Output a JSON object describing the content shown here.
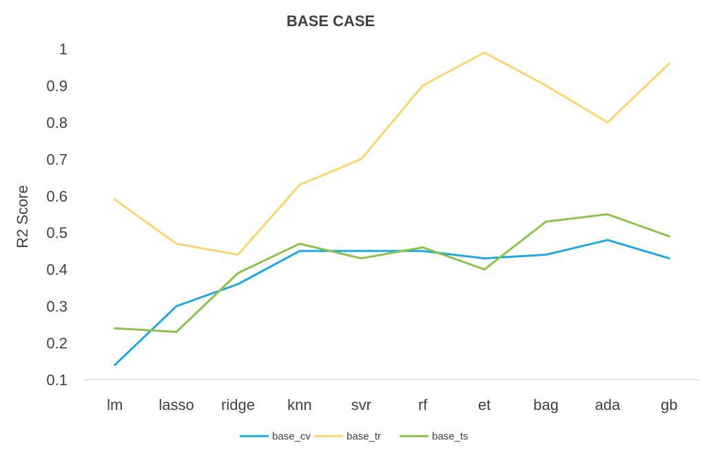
{
  "chart_data": {
    "type": "line",
    "title": "BASE CASE",
    "xlabel": "",
    "ylabel": "R2 Score",
    "categories": [
      "lm",
      "lasso",
      "ridge",
      "knn",
      "svr",
      "rf",
      "et",
      "bag",
      "ada",
      "gb"
    ],
    "yticks": [
      "0.1",
      "0.2",
      "0.3",
      "0.4",
      "0.5",
      "0.6",
      "0.7",
      "0.8",
      "0.9",
      "1"
    ],
    "ylim": [
      0.1,
      1.0
    ],
    "grid": false,
    "legend_position": "bottom",
    "series": [
      {
        "name": "base_cv",
        "color": "#1fa7e1",
        "values": [
          0.14,
          0.3,
          0.36,
          0.45,
          0.45,
          0.45,
          0.43,
          0.44,
          0.48,
          0.43
        ]
      },
      {
        "name": "base_tr",
        "color": "#fbd46d",
        "values": [
          0.59,
          0.47,
          0.44,
          0.63,
          0.7,
          0.9,
          0.99,
          0.9,
          0.8,
          0.96
        ]
      },
      {
        "name": "base_ts",
        "color": "#8bc34a",
        "values": [
          0.24,
          0.23,
          0.39,
          0.47,
          0.43,
          0.46,
          0.4,
          0.53,
          0.55,
          0.49
        ]
      }
    ]
  }
}
